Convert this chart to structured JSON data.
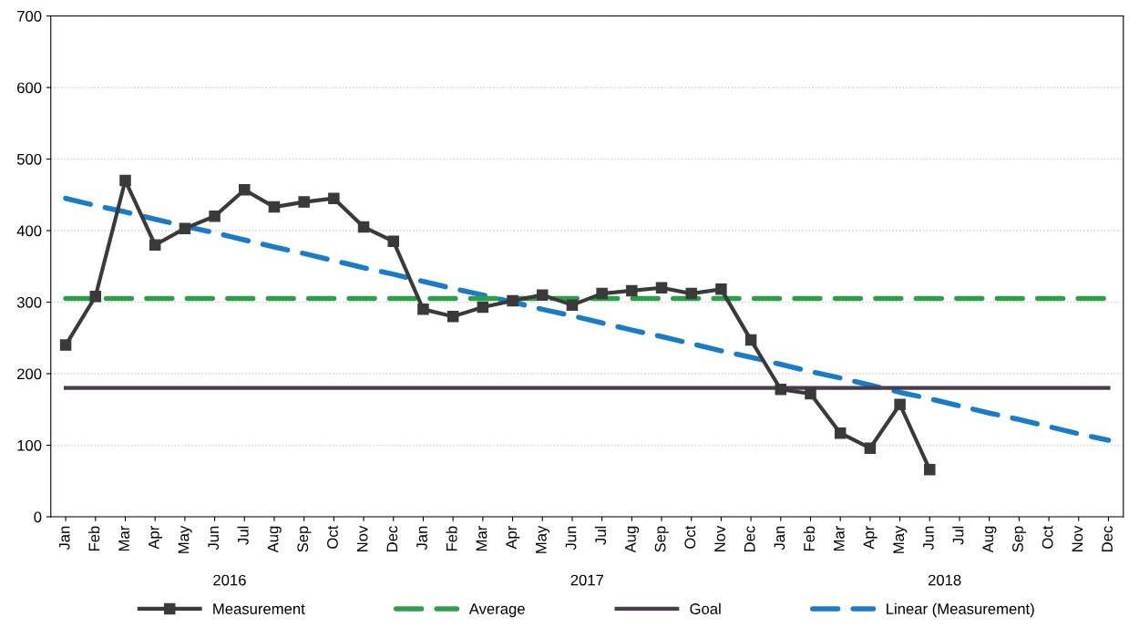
{
  "chart_data": {
    "type": "line",
    "categories": [
      "Jan",
      "Feb",
      "Mar",
      "Apr",
      "May",
      "Jun",
      "Jul",
      "Aug",
      "Sep",
      "Oct",
      "Nov",
      "Dec",
      "Jan",
      "Feb",
      "Mar",
      "Apr",
      "May",
      "Jun",
      "Jul",
      "Aug",
      "Sep",
      "Oct",
      "Nov",
      "Dec",
      "Jan",
      "Feb",
      "Mar",
      "Apr",
      "May",
      "Jun",
      "Jul",
      "Aug",
      "Sep",
      "Oct",
      "Nov",
      "Dec"
    ],
    "series": [
      {
        "name": "Measurement",
        "color": "#3a3a3a",
        "marker": "square",
        "line_style": "solid",
        "values": [
          240,
          308,
          470,
          380,
          403,
          420,
          457,
          433,
          440,
          445,
          405,
          385,
          290,
          280,
          293,
          302,
          310,
          296,
          312,
          316,
          320,
          312,
          318,
          247,
          178,
          172,
          117,
          96,
          157,
          66,
          null,
          null,
          null,
          null,
          null,
          null
        ]
      },
      {
        "name": "Average",
        "color": "#2e9e4a",
        "marker": "none",
        "line_style": "dashed",
        "values": [
          305,
          305,
          305,
          305,
          305,
          305,
          305,
          305,
          305,
          305,
          305,
          305,
          305,
          305,
          305,
          305,
          305,
          305,
          305,
          305,
          305,
          305,
          305,
          305,
          305,
          305,
          305,
          305,
          305,
          305,
          305,
          305,
          305,
          305,
          305,
          305
        ]
      },
      {
        "name": "Goal",
        "color": "#4b3a4e",
        "marker": "none",
        "line_style": "solid",
        "values": [
          180,
          180,
          180,
          180,
          180,
          180,
          180,
          180,
          180,
          180,
          180,
          180,
          180,
          180,
          180,
          180,
          180,
          180,
          180,
          180,
          180,
          180,
          180,
          180,
          180,
          180,
          180,
          180,
          180,
          180,
          180,
          180,
          180,
          180,
          180,
          180
        ]
      },
      {
        "name": "Linear (Measurement)",
        "color": "#1a7cc8",
        "marker": "none",
        "line_style": "dashed",
        "values": [
          445,
          435,
          426,
          416,
          406,
          397,
          387,
          377,
          368,
          358,
          348,
          339,
          329,
          319,
          310,
          300,
          290,
          281,
          271,
          261,
          252,
          242,
          232,
          223,
          213,
          203,
          194,
          184,
          174,
          165,
          155,
          145,
          136,
          126,
          116,
          107
        ]
      }
    ],
    "annotations": [
      "2016",
      "2017",
      "2018"
    ],
    "ylim": [
      0,
      700
    ],
    "yticks": [
      0,
      100,
      200,
      300,
      400,
      500,
      600,
      700
    ],
    "grid": "y",
    "legend": "bottom"
  }
}
